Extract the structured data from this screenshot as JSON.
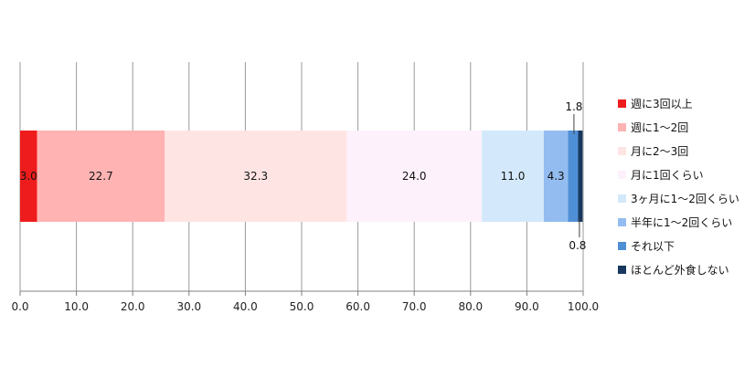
{
  "chart_data": {
    "type": "bar",
    "orientation": "horizontal",
    "stacked": true,
    "title": "",
    "xlabel": "",
    "ylabel": "",
    "xlim": [
      0,
      100
    ],
    "x_ticks": [
      "0.0",
      "10.0",
      "20.0",
      "30.0",
      "40.0",
      "50.0",
      "60.0",
      "70.0",
      "80.0",
      "90.0",
      "100.0"
    ],
    "grid": "vertical",
    "legend_position": "right",
    "series": [
      {
        "name": "週に3回以上",
        "value": 3.0,
        "label": "3.0",
        "color": "#ee1c1c"
      },
      {
        "name": "週に1～2回",
        "value": 22.7,
        "label": "22.7",
        "color": "#ffb3b3"
      },
      {
        "name": "月に2～3回",
        "value": 32.3,
        "label": "32.3",
        "color": "#ffe4e4"
      },
      {
        "name": "月に1回くらい",
        "value": 24.0,
        "label": "24.0",
        "color": "#fdf1fc"
      },
      {
        "name": "3ヶ月に1～2回くらい",
        "value": 11.0,
        "label": "11.0",
        "color": "#d3e9fb"
      },
      {
        "name": "半年に1～2回くらい",
        "value": 4.3,
        "label": "4.3",
        "color": "#93bdf0"
      },
      {
        "name": "それ以下",
        "value": 1.8,
        "label": "1.8",
        "color": "#4f8fd6"
      },
      {
        "name": "ほとんど外食しない",
        "value": 0.8,
        "label": "0.8",
        "color": "#17375e"
      }
    ]
  }
}
